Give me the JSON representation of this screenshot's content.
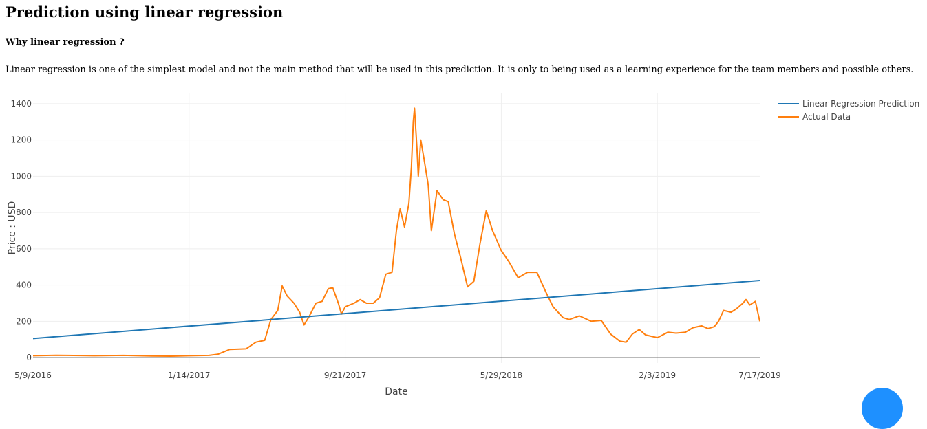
{
  "page": {
    "title": "Prediction using linear regression",
    "section_title": "Why linear regression ?",
    "intro": "Linear regression is one of the simplest model and not the main method that will be used in this prediction. It is only to being used as a learning experience for the team members and possible others."
  },
  "chart_data": {
    "type": "line",
    "xlabel": "Date",
    "ylabel": "Price : USD",
    "x_tick_labels": [
      "5/9/2016",
      "1/14/2017",
      "9/21/2017",
      "5/29/2018",
      "2/3/2019",
      "7/17/2019"
    ],
    "x_tick_dates": [
      "2016-05-09",
      "2017-01-14",
      "2017-09-21",
      "2018-05-29",
      "2019-02-03",
      "2019-07-17"
    ],
    "y_ticks": [
      0,
      200,
      400,
      600,
      800,
      1000,
      1200,
      1400
    ],
    "xlim": [
      "2016-05-09",
      "2019-07-17"
    ],
    "ylim": [
      -30,
      1460
    ],
    "grid": true,
    "legend_position": "top-right",
    "series": [
      {
        "name": "Linear Regression Prediction",
        "color": "#1f77b4",
        "points": [
          [
            "2016-05-09",
            105
          ],
          [
            "2019-07-17",
            425
          ]
        ]
      },
      {
        "name": "Actual Data",
        "color": "#ff7f0e",
        "points": [
          [
            "2016-05-09",
            10
          ],
          [
            "2016-06-15",
            13
          ],
          [
            "2016-07-01",
            12
          ],
          [
            "2016-08-15",
            10
          ],
          [
            "2016-10-01",
            12
          ],
          [
            "2016-11-15",
            9
          ],
          [
            "2016-12-15",
            8
          ],
          [
            "2017-01-14",
            10
          ],
          [
            "2017-02-15",
            12
          ],
          [
            "2017-03-01",
            18
          ],
          [
            "2017-03-20",
            45
          ],
          [
            "2017-04-15",
            48
          ],
          [
            "2017-05-01",
            85
          ],
          [
            "2017-05-15",
            95
          ],
          [
            "2017-05-25",
            210
          ],
          [
            "2017-06-05",
            260
          ],
          [
            "2017-06-12",
            395
          ],
          [
            "2017-06-20",
            340
          ],
          [
            "2017-07-01",
            300
          ],
          [
            "2017-07-10",
            250
          ],
          [
            "2017-07-17",
            180
          ],
          [
            "2017-07-25",
            225
          ],
          [
            "2017-08-05",
            300
          ],
          [
            "2017-08-15",
            310
          ],
          [
            "2017-08-25",
            380
          ],
          [
            "2017-09-01",
            385
          ],
          [
            "2017-09-10",
            300
          ],
          [
            "2017-09-15",
            240
          ],
          [
            "2017-09-21",
            280
          ],
          [
            "2017-10-05",
            300
          ],
          [
            "2017-10-15",
            320
          ],
          [
            "2017-10-25",
            300
          ],
          [
            "2017-11-05",
            300
          ],
          [
            "2017-11-15",
            330
          ],
          [
            "2017-11-25",
            460
          ],
          [
            "2017-12-05",
            470
          ],
          [
            "2017-12-12",
            700
          ],
          [
            "2017-12-18",
            820
          ],
          [
            "2017-12-25",
            720
          ],
          [
            "2018-01-01",
            850
          ],
          [
            "2018-01-05",
            1050
          ],
          [
            "2018-01-08",
            1300
          ],
          [
            "2018-01-10",
            1375
          ],
          [
            "2018-01-14",
            1150
          ],
          [
            "2018-01-16",
            1000
          ],
          [
            "2018-01-20",
            1200
          ],
          [
            "2018-01-25",
            1100
          ],
          [
            "2018-02-01",
            950
          ],
          [
            "2018-02-06",
            700
          ],
          [
            "2018-02-15",
            920
          ],
          [
            "2018-02-25",
            870
          ],
          [
            "2018-03-05",
            860
          ],
          [
            "2018-03-15",
            680
          ],
          [
            "2018-03-25",
            550
          ],
          [
            "2018-04-05",
            390
          ],
          [
            "2018-04-15",
            420
          ],
          [
            "2018-04-25",
            630
          ],
          [
            "2018-05-05",
            810
          ],
          [
            "2018-05-15",
            700
          ],
          [
            "2018-05-29",
            590
          ],
          [
            "2018-06-10",
            530
          ],
          [
            "2018-06-25",
            440
          ],
          [
            "2018-07-10",
            470
          ],
          [
            "2018-07-25",
            470
          ],
          [
            "2018-08-10",
            350
          ],
          [
            "2018-08-20",
            280
          ],
          [
            "2018-09-05",
            220
          ],
          [
            "2018-09-15",
            210
          ],
          [
            "2018-10-01",
            230
          ],
          [
            "2018-10-20",
            200
          ],
          [
            "2018-11-05",
            205
          ],
          [
            "2018-11-20",
            130
          ],
          [
            "2018-12-05",
            90
          ],
          [
            "2018-12-15",
            85
          ],
          [
            "2018-12-25",
            130
          ],
          [
            "2019-01-05",
            155
          ],
          [
            "2019-01-15",
            125
          ],
          [
            "2019-02-03",
            110
          ],
          [
            "2019-02-20",
            140
          ],
          [
            "2019-03-05",
            135
          ],
          [
            "2019-03-20",
            140
          ],
          [
            "2019-04-01",
            165
          ],
          [
            "2019-04-15",
            175
          ],
          [
            "2019-04-25",
            160
          ],
          [
            "2019-05-05",
            170
          ],
          [
            "2019-05-12",
            200
          ],
          [
            "2019-05-20",
            260
          ],
          [
            "2019-06-01",
            250
          ],
          [
            "2019-06-10",
            270
          ],
          [
            "2019-06-20",
            300
          ],
          [
            "2019-06-25",
            320
          ],
          [
            "2019-07-01",
            290
          ],
          [
            "2019-07-10",
            310
          ],
          [
            "2019-07-17",
            200
          ]
        ]
      }
    ]
  }
}
